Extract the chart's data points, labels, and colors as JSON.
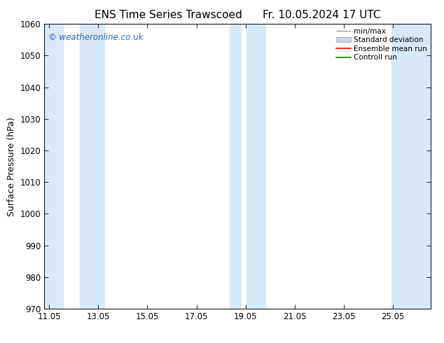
{
  "title": "ENS Time Series Trawscoed",
  "title_right": "Fr. 10.05.2024 17 UTC",
  "ylabel": "Surface Pressure (hPa)",
  "ylim": [
    970,
    1060
  ],
  "yticks": [
    970,
    980,
    990,
    1000,
    1010,
    1020,
    1030,
    1040,
    1050,
    1060
  ],
  "xlim_start": 10.85,
  "xlim_end": 26.6,
  "xticks": [
    11.05,
    13.05,
    15.05,
    17.05,
    19.05,
    21.05,
    23.05,
    25.05
  ],
  "xtick_labels": [
    "11.05",
    "13.05",
    "15.05",
    "17.05",
    "19.05",
    "21.05",
    "23.05",
    "25.05"
  ],
  "shaded_bands": [
    {
      "x_start": 10.85,
      "x_end": 11.6
    },
    {
      "x_start": 12.3,
      "x_end": 13.3
    },
    {
      "x_start": 18.4,
      "x_end": 18.85
    },
    {
      "x_start": 19.1,
      "x_end": 19.85
    },
    {
      "x_start": 25.0,
      "x_end": 26.6
    }
  ],
  "band_color": "#d8e9f7",
  "legend_labels": [
    "min/max",
    "Standard deviation",
    "Ensemble mean run",
    "Controll run"
  ],
  "legend_colors": [
    "#aaaaaa",
    "#c5d8ea",
    "#ff0000",
    "#008000"
  ],
  "watermark": "© weatheronline.co.uk",
  "watermark_color": "#3366bb",
  "bg_color": "#ffffff",
  "plot_bg_color": "#ffffff",
  "title_fontsize": 11,
  "tick_fontsize": 8.5,
  "ylabel_fontsize": 9
}
